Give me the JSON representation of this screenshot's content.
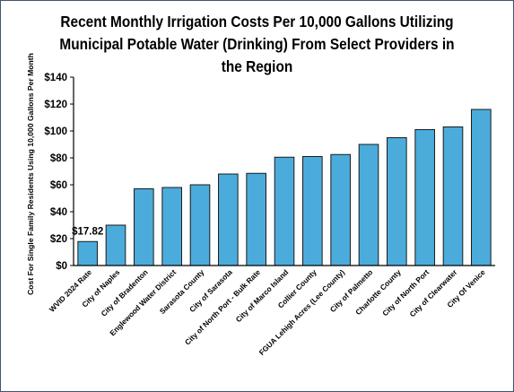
{
  "chart_data": {
    "type": "bar",
    "title": "Recent Monthly Irrigation Costs Per 10,000 Gallons Utilizing Municipal Potable Water (Drinking) From Select Providers in the Region",
    "xlabel": "",
    "ylabel": "Cost For Single Family Residents Using 10,000 Gallons Per Month",
    "ylim": [
      0,
      140
    ],
    "yticks": [
      0,
      20,
      40,
      60,
      80,
      100,
      120,
      140
    ],
    "ytick_labels": [
      "$0",
      "$20",
      "$40",
      "$60",
      "$80",
      "$100",
      "$120",
      "$140"
    ],
    "grid": false,
    "legend": "none",
    "categories": [
      "WVID 2024 Rate",
      "City of Naples",
      "City of Bradenton",
      "Englewood Water District",
      "Sarasota County",
      "City of Sarasota",
      "City of North Port - Bulk Rate",
      "City of Marco Island",
      "Collier County",
      "FGUA Lehigh Acres (Lee County)",
      "City of Palmetto",
      "Charlotte County",
      "City of North Port",
      "City of Clearwater",
      "City Of Venice"
    ],
    "values": [
      17.82,
      30,
      57,
      58,
      60,
      68,
      68.5,
      80.5,
      81,
      82.5,
      90,
      95,
      101,
      103,
      116
    ],
    "data_labels": [
      {
        "index": 0,
        "text": "$17.82"
      }
    ],
    "colors": {
      "bar_fill": "#4bacdc",
      "bar_stroke": "#1a1a1a",
      "axis": "#000000",
      "border": "#44546a"
    }
  }
}
